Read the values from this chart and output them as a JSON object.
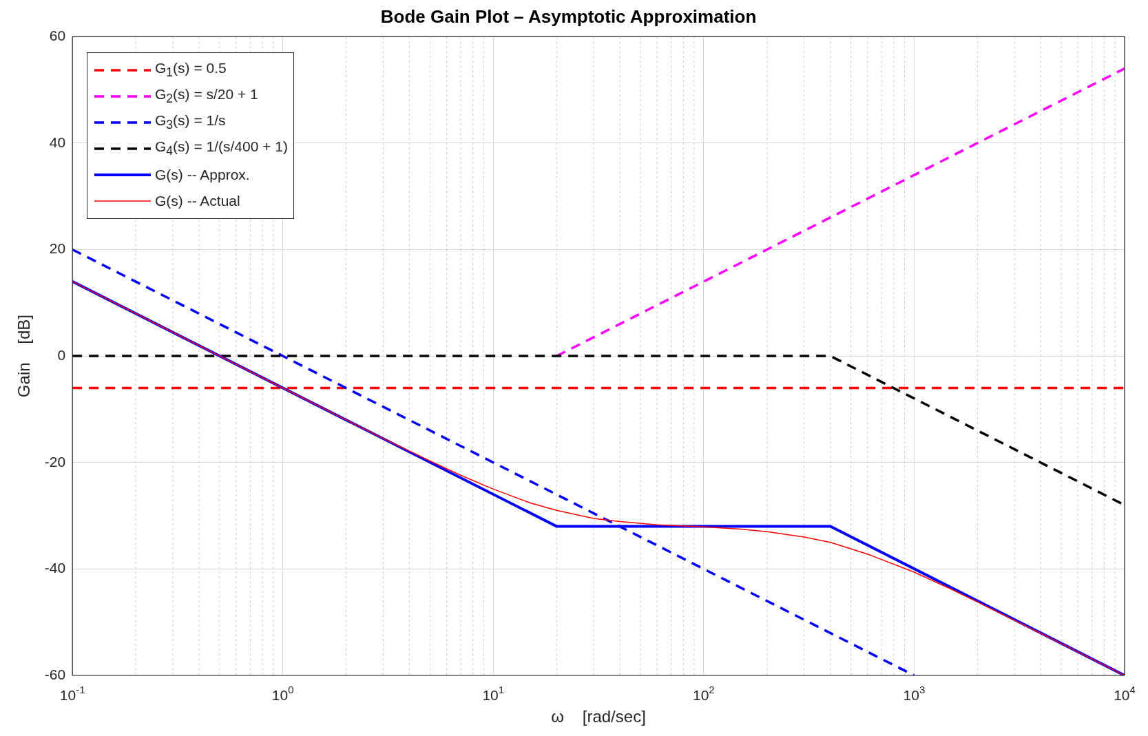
{
  "chart_data": {
    "type": "line",
    "title": "Bode Gain Plot – Asymptotic Approximation",
    "xlabel": "ω    [rad/sec]",
    "ylabel": "Gain    [dB]",
    "log": "x",
    "grid": true,
    "legend": "top left",
    "marker": "none",
    "xlim": [
      0.1,
      10000
    ],
    "xticks": [
      {
        "value": 0.1,
        "label": "10$^{-1}$"
      },
      {
        "value": 1,
        "label": "10$^{0}$"
      },
      {
        "value": 10,
        "label": "10$^{1}$"
      },
      {
        "value": 100,
        "label": "10$^{2}$"
      },
      {
        "value": 1000,
        "label": "10$^{3}$"
      },
      {
        "value": 10000,
        "label": "10$^{4}$"
      }
    ],
    "ylim": [
      -60,
      60
    ],
    "yticks": [
      -60,
      -40,
      -20,
      0,
      20,
      40,
      60
    ],
    "series": [
      {
        "name": "G$_{1}$(s) = 0.5",
        "color": "#ff0000",
        "line_style": "dashed",
        "x": [
          0.1,
          10000
        ],
        "values": [
          -6,
          -6
        ]
      },
      {
        "name": "G$_{2}$(s) = s/20 + 1",
        "color": "#ff00ff",
        "line_style": "dashed",
        "x": [
          20,
          10000
        ],
        "values": [
          0,
          54
        ]
      },
      {
        "name": "G$_{3}$(s) = 1/s",
        "color": "#0000ff",
        "line_style": "dashed",
        "x": [
          0.1,
          1000
        ],
        "values": [
          20,
          -60
        ]
      },
      {
        "name": "G$_{4}$(s) = 1/(s/400 + 1)",
        "color": "#000000",
        "line_style": "dashed",
        "x": [
          0.1,
          400,
          10000
        ],
        "values": [
          0,
          0,
          -28
        ]
      },
      {
        "name": "G(s) -- Approx.",
        "color": "#0000ff",
        "line_style": "solid",
        "x": [
          0.1,
          20,
          400,
          10000
        ],
        "values": [
          14,
          -32,
          -32,
          -60
        ]
      },
      {
        "name": "G(s) -- Actual",
        "color": "#ff0000",
        "line_style": "solid",
        "x": [
          0.1,
          1,
          2,
          3,
          5,
          7,
          10,
          15,
          20,
          30,
          40,
          60,
          100,
          150,
          200,
          300,
          400,
          600,
          1000,
          1500,
          2000,
          5000,
          10000
        ],
        "values": [
          14,
          -6,
          -12,
          -15.5,
          -19.7,
          -22.4,
          -25,
          -27.6,
          -29,
          -30.5,
          -31.1,
          -31.7,
          -32.1,
          -32.5,
          -33,
          -34,
          -35,
          -37.2,
          -40.6,
          -43.8,
          -46.2,
          -54,
          -60
        ]
      }
    ]
  }
}
